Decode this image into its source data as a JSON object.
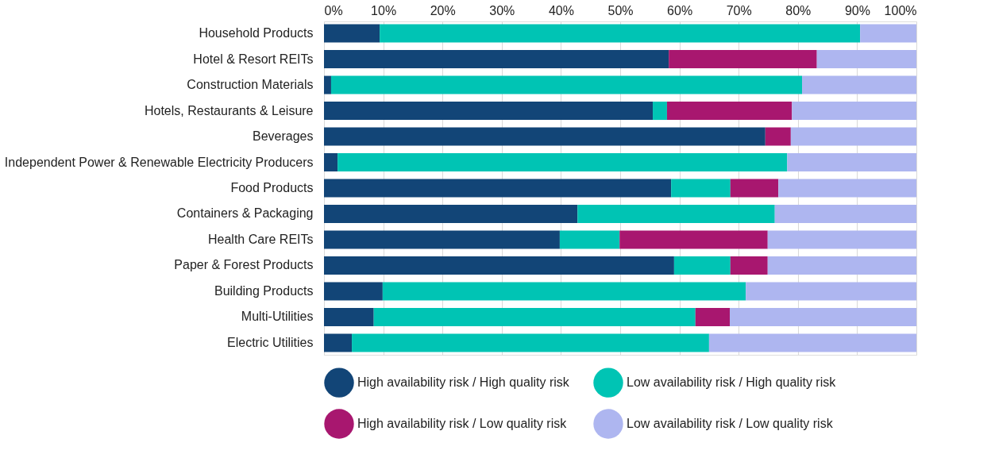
{
  "chart_data": {
    "type": "bar",
    "orientation": "horizontal",
    "stacked": true,
    "categories": [
      "Household Products",
      "Hotel & Resort REITs",
      "Construction Materials",
      "Hotels, Restaurants & Leisure",
      "Beverages",
      "Independent Power & Renewable Electricity Producers",
      "Food Products",
      "Containers & Packaging",
      "Health Care REITs",
      "Paper & Forest Products",
      "Building Products",
      "Multi-Utilities",
      "Electric Utilities"
    ],
    "series": [
      {
        "name": "High availability risk / High quality risk",
        "color": "#124577",
        "values": [
          9.4,
          58.2,
          1.2,
          55.5,
          74.5,
          2.3,
          58.6,
          42.8,
          39.8,
          59.1,
          9.9,
          8.4,
          4.7
        ]
      },
      {
        "name": "Low availability risk / High quality risk",
        "color": "#00c4b4",
        "values": [
          81.1,
          0,
          79.5,
          2.4,
          0,
          75.9,
          10.0,
          33.3,
          10.1,
          9.5,
          61.3,
          54.3,
          60.3
        ]
      },
      {
        "name": "High availability risk / Low quality risk",
        "color": "#a8176f",
        "values": [
          0,
          25.0,
          0,
          21.1,
          4.3,
          0,
          8.1,
          0,
          25.0,
          6.3,
          0,
          5.8,
          0
        ]
      },
      {
        "name": "Low availability risk / Low quality risk",
        "color": "#aeb6f0",
        "values": [
          9.5,
          16.8,
          19.3,
          21.0,
          21.2,
          21.8,
          23.3,
          23.9,
          25.1,
          25.1,
          28.8,
          31.5,
          35.0
        ]
      }
    ],
    "xlim": [
      0,
      100
    ],
    "xticks": [
      {
        "value": 0,
        "label": "0%"
      },
      {
        "value": 10,
        "label": "10%"
      },
      {
        "value": 20,
        "label": "20%"
      },
      {
        "value": 30,
        "label": "30%"
      },
      {
        "value": 40,
        "label": "40%"
      },
      {
        "value": 50,
        "label": "50%"
      },
      {
        "value": 60,
        "label": "60%"
      },
      {
        "value": 70,
        "label": "70%"
      },
      {
        "value": 80,
        "label": "80%"
      },
      {
        "value": 90,
        "label": "90%"
      },
      {
        "value": 100,
        "label": "100%"
      }
    ],
    "grid": "x",
    "legend": "bottom"
  }
}
